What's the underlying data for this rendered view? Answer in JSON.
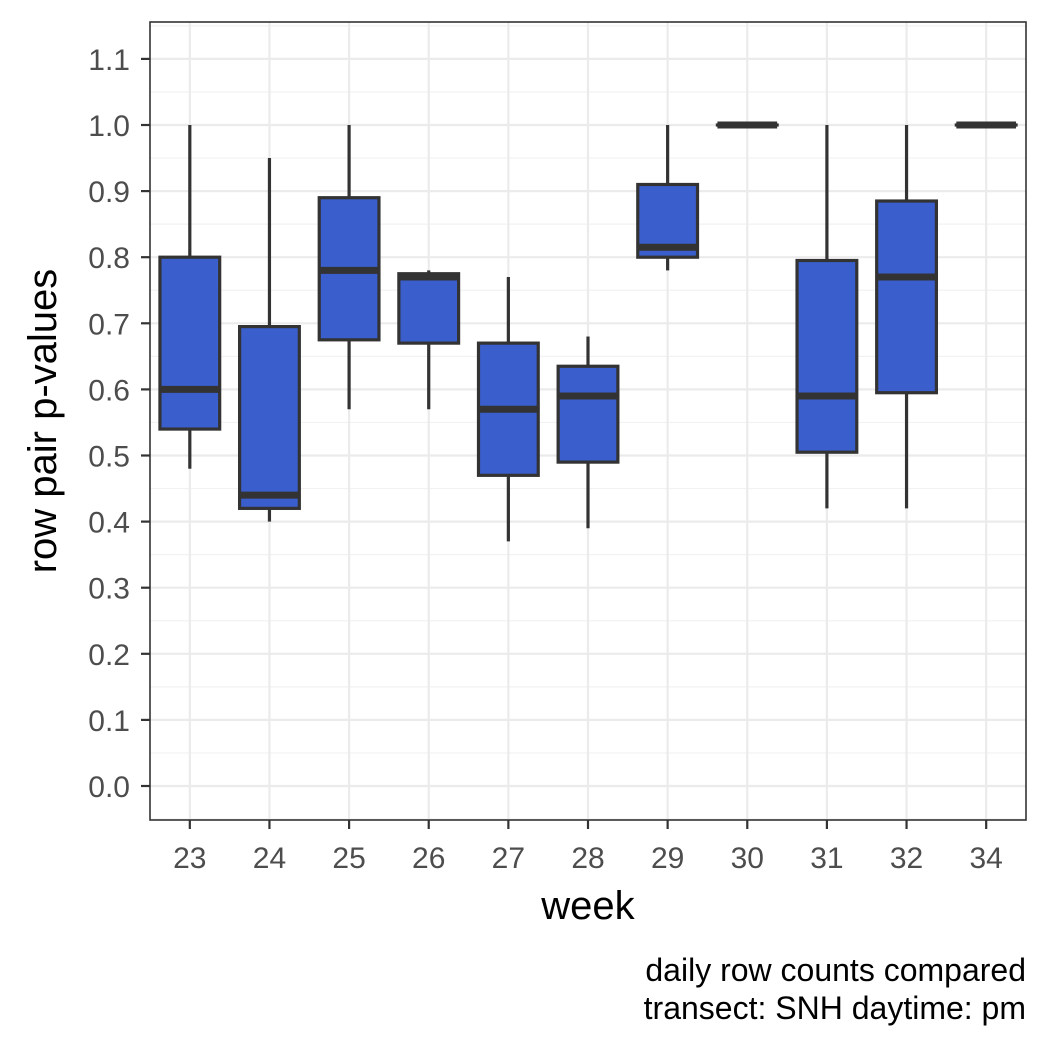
{
  "chart_data": {
    "type": "boxplot",
    "xlabel": "week",
    "ylabel": "row pair p-values",
    "categories": [
      "23",
      "24",
      "25",
      "26",
      "27",
      "28",
      "29",
      "30",
      "31",
      "32",
      "34"
    ],
    "yticks": [
      "0.0",
      "0.1",
      "0.2",
      "0.3",
      "0.4",
      "0.5",
      "0.6",
      "0.7",
      "0.8",
      "0.9",
      "1.0",
      "1.1"
    ],
    "ylim": [
      -0.05,
      1.15
    ],
    "grid": true,
    "box_color": "#3a5fcd",
    "edge_color": "#333333",
    "boxes": [
      {
        "week": "23",
        "min": 0.48,
        "q1": 0.54,
        "median": 0.6,
        "q3": 0.8,
        "max": 1.0
      },
      {
        "week": "24",
        "min": 0.4,
        "q1": 0.42,
        "median": 0.44,
        "q3": 0.695,
        "max": 0.95
      },
      {
        "week": "25",
        "min": 0.57,
        "q1": 0.675,
        "median": 0.78,
        "q3": 0.89,
        "max": 1.0
      },
      {
        "week": "26",
        "min": 0.57,
        "q1": 0.67,
        "median": 0.77,
        "q3": 0.775,
        "max": 0.78
      },
      {
        "week": "27",
        "min": 0.37,
        "q1": 0.47,
        "median": 0.57,
        "q3": 0.67,
        "max": 0.77
      },
      {
        "week": "28",
        "min": 0.39,
        "q1": 0.49,
        "median": 0.59,
        "q3": 0.635,
        "max": 0.68
      },
      {
        "week": "29",
        "min": 0.78,
        "q1": 0.8,
        "median": 0.815,
        "q3": 0.91,
        "max": 1.0
      },
      {
        "week": "30",
        "min": 1.0,
        "q1": 1.0,
        "median": 1.0,
        "q3": 1.0,
        "max": 1.0
      },
      {
        "week": "31",
        "min": 0.42,
        "q1": 0.505,
        "median": 0.59,
        "q3": 0.795,
        "max": 1.0
      },
      {
        "week": "32",
        "min": 0.42,
        "q1": 0.595,
        "median": 0.77,
        "q3": 0.885,
        "max": 1.0
      },
      {
        "week": "34",
        "min": 1.0,
        "q1": 1.0,
        "median": 1.0,
        "q3": 1.0,
        "max": 1.0
      }
    ],
    "caption_lines": [
      "daily row counts compared",
      "transect: SNH daytime: pm"
    ]
  }
}
